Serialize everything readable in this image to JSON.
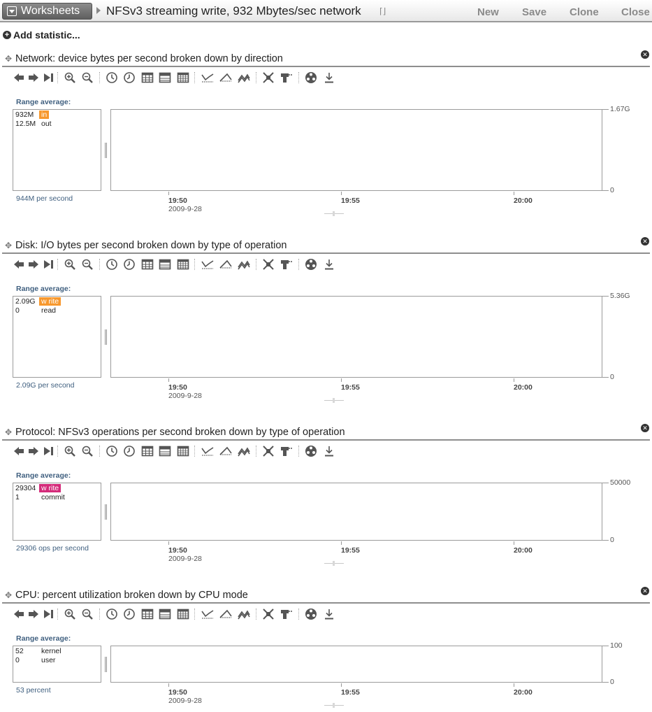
{
  "topbar": {
    "worksheets_label": "Worksheets",
    "title": "NFSv3 streaming write, 932 Mbytes/sec network",
    "new_label": "New",
    "save_label": "Save",
    "clone_label": "Clone",
    "close_label": "Close"
  },
  "add_statistic_label": "Add statistic...",
  "range_average_label": "Range average:",
  "panels": [
    {
      "title": "Network: device bytes per second broken down by direction",
      "legend": [
        {
          "value": "932M",
          "name": "in",
          "color": "#f7982d",
          "selected": true
        },
        {
          "value": "12.5M",
          "name": "out",
          "color": "",
          "selected": false
        }
      ],
      "summary": "944M per second",
      "y_max_label": "1.67G",
      "y_min_label": "0",
      "x_ticks": [
        "19:50",
        "19:55",
        "20:00"
      ],
      "x_date": "2009-9-28",
      "series_color": "#f7982d"
    },
    {
      "title": "Disk: I/O bytes per second broken down by type of operation",
      "legend": [
        {
          "value": "2.09G",
          "name": "w rite",
          "color": "#f7982d",
          "selected": true
        },
        {
          "value": "0",
          "name": "read",
          "color": "",
          "selected": false
        }
      ],
      "summary": "2.09G per second",
      "y_max_label": "5.36G",
      "y_min_label": "0",
      "x_ticks": [
        "19:50",
        "19:55",
        "20:00"
      ],
      "x_date": "2009-9-28",
      "series_color": "#f7982d"
    },
    {
      "title": "Protocol: NFSv3 operations per second broken down by type of operation",
      "legend": [
        {
          "value": "29304",
          "name": "w rite",
          "color": "#d42b7a",
          "selected": true
        },
        {
          "value": "1",
          "name": "commit",
          "color": "",
          "selected": false
        }
      ],
      "summary": "29306 ops per second",
      "y_max_label": "50000",
      "y_min_label": "0",
      "x_ticks": [
        "19:50",
        "19:55",
        "20:00"
      ],
      "x_date": "2009-9-28",
      "series_color": "#d42b7a"
    },
    {
      "title": "CPU: percent utilization broken down by CPU mode",
      "legend": [
        {
          "value": "52",
          "name": "kernel",
          "color": "",
          "selected": false
        },
        {
          "value": "0",
          "name": "user",
          "color": "",
          "selected": false
        }
      ],
      "summary": "53 percent",
      "y_max_label": "100",
      "y_min_label": "0",
      "x_ticks": [
        "19:50",
        "19:55",
        "20:00"
      ],
      "x_date": "2009-9-28",
      "series_color": "#4a7fa0"
    }
  ],
  "toolbar_icons": [
    "back-icon",
    "forward-icon",
    "skip-end-icon",
    "zoom-in-icon",
    "zoom-out-icon",
    "clock-forward-icon",
    "clock-back-icon",
    "table-icon",
    "table-alt-icon",
    "table-grid-icon",
    "min-line-icon",
    "max-line-icon",
    "mountain-chart-icon",
    "crop-icon",
    "drill-icon",
    "color-wheel-icon",
    "download-icon"
  ]
}
